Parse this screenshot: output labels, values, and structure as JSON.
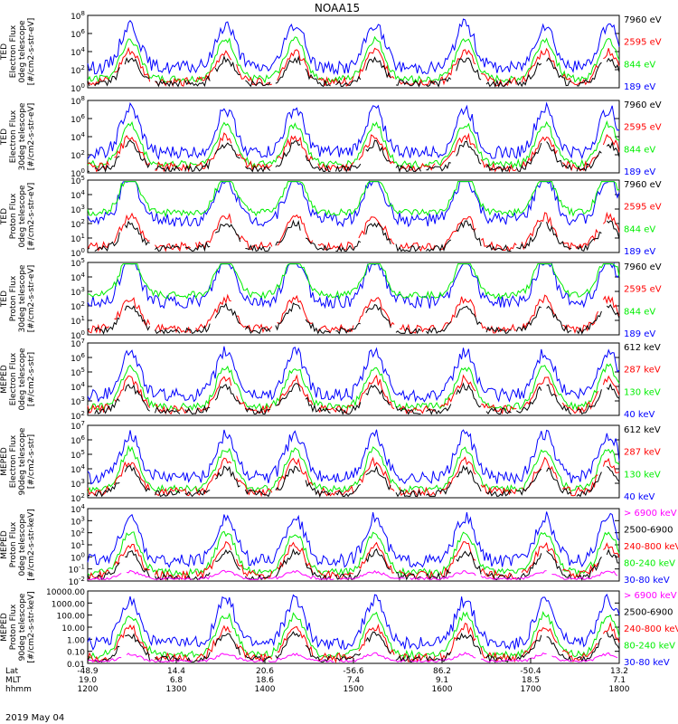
{
  "title": "NOAA15",
  "date_label": "2019 May 04",
  "xaxis": {
    "row_labels": [
      "Lat",
      "MLT",
      "hhmm"
    ],
    "lat": [
      "-48.9",
      "14.4",
      "20.6",
      "-56.6",
      "86.2",
      "-50.4",
      "13.2"
    ],
    "mlt": [
      "19.0",
      "6.8",
      "18.6",
      "7.4",
      "9.1",
      "18.5",
      "7.1"
    ],
    "hhmm": [
      "1200",
      "1300",
      "1400",
      "1500",
      "1600",
      "1700",
      "1800"
    ]
  },
  "colors": {
    "black": "#000000",
    "blue": "#0000ff",
    "green": "#00ee00",
    "red": "#ff0000",
    "magenta": "#ff00ff"
  },
  "chart_data": [
    {
      "type": "line",
      "ylabel": [
        "TED",
        "Electron Flux",
        "0deg telescope",
        "[#/cm2-s-str-eV]"
      ],
      "yticks": [
        "10^0",
        "10^2",
        "10^4",
        "10^6",
        "10^8"
      ],
      "ylog": true,
      "ylim": [
        1,
        100000000
      ],
      "series": [
        {
          "name": "7960 eV",
          "color": "#000000"
        },
        {
          "name": "2595 eV",
          "color": "#ff0000"
        },
        {
          "name": "844 eV",
          "color": "#00ee00"
        },
        {
          "name": "189 eV",
          "color": "#0000ff"
        }
      ]
    },
    {
      "type": "line",
      "ylabel": [
        "TED",
        "Electron Flux",
        "30deg telescope",
        "[#/cm2-s-str-eV]"
      ],
      "yticks": [
        "10^0",
        "10^2",
        "10^4",
        "10^6",
        "10^8"
      ],
      "ylog": true,
      "ylim": [
        1,
        100000000
      ],
      "series": [
        {
          "name": "7960 eV",
          "color": "#000000"
        },
        {
          "name": "2595 eV",
          "color": "#ff0000"
        },
        {
          "name": "844 eV",
          "color": "#00ee00"
        },
        {
          "name": "189 eV",
          "color": "#0000ff"
        }
      ]
    },
    {
      "type": "line",
      "ylabel": [
        "TED",
        "Proton Flux",
        "0deg telescope",
        "[#/cm2-s-str-eV]"
      ],
      "yticks": [
        "10^0",
        "10^1",
        "10^2",
        "10^3",
        "10^4",
        "10^5"
      ],
      "ylog": true,
      "ylim": [
        1,
        100000
      ],
      "series": [
        {
          "name": "7960 eV",
          "color": "#000000"
        },
        {
          "name": "2595 eV",
          "color": "#ff0000"
        },
        {
          "name": "844 eV",
          "color": "#00ee00"
        },
        {
          "name": "189 eV",
          "color": "#0000ff"
        }
      ]
    },
    {
      "type": "line",
      "ylabel": [
        "TED",
        "Proton Flux",
        "30deg telescope",
        "[#/cm2-s-str-eV]"
      ],
      "yticks": [
        "10^0",
        "10^1",
        "10^2",
        "10^3",
        "10^4",
        "10^5"
      ],
      "ylog": true,
      "ylim": [
        1,
        100000
      ],
      "series": [
        {
          "name": "7960 eV",
          "color": "#000000"
        },
        {
          "name": "2595 eV",
          "color": "#ff0000"
        },
        {
          "name": "844 eV",
          "color": "#00ee00"
        },
        {
          "name": "189 eV",
          "color": "#0000ff"
        }
      ]
    },
    {
      "type": "line",
      "ylabel": [
        "MEPED",
        "Electron Flux",
        "0deg telescope",
        "[#/cm2-s-str]"
      ],
      "yticks": [
        "10^2",
        "10^3",
        "10^4",
        "10^5",
        "10^6",
        "10^7"
      ],
      "ylog": true,
      "ylim": [
        100,
        10000000
      ],
      "series": [
        {
          "name": "612 keV",
          "color": "#000000"
        },
        {
          "name": "287 keV",
          "color": "#ff0000"
        },
        {
          "name": "130 keV",
          "color": "#00ee00"
        },
        {
          "name": "40 keV",
          "color": "#0000ff"
        }
      ]
    },
    {
      "type": "line",
      "ylabel": [
        "MEPED",
        "Electron Flux",
        "90deg telescope",
        "[#/cm2-s-str]"
      ],
      "yticks": [
        "10^2",
        "10^3",
        "10^4",
        "10^5",
        "10^6",
        "10^7"
      ],
      "ylog": true,
      "ylim": [
        100,
        10000000
      ],
      "series": [
        {
          "name": "612 keV",
          "color": "#000000"
        },
        {
          "name": "287 keV",
          "color": "#ff0000"
        },
        {
          "name": "130 keV",
          "color": "#00ee00"
        },
        {
          "name": "40 keV",
          "color": "#0000ff"
        }
      ]
    },
    {
      "type": "line",
      "ylabel": [
        "MEPED",
        "Proton Flux",
        "0deg telescope",
        "[#/cm2-s-str-keV]"
      ],
      "yticks": [
        "10^-2",
        "10^-1",
        "10^0",
        "10^1",
        "10^2",
        "10^3",
        "10^4"
      ],
      "ylog": true,
      "ylim": [
        0.01,
        10000
      ],
      "series": [
        {
          "name": "> 6900 keV",
          "color": "#ff00ff"
        },
        {
          "name": "2500-6900",
          "color": "#000000"
        },
        {
          "name": "240-800 keV",
          "color": "#ff0000"
        },
        {
          "name": "80-240 keV",
          "color": "#00ee00"
        },
        {
          "name": "30-80 keV",
          "color": "#0000ff"
        }
      ]
    },
    {
      "type": "line",
      "ylabel": [
        "MEPED",
        "Proton Flux",
        "90deg telescope",
        "[#/cm2-s-str-keV]"
      ],
      "yticks": [
        "0.01",
        "0.10",
        "1.00",
        "10.00",
        "100.00",
        "1000.00",
        "10000.00"
      ],
      "ylog": true,
      "ylim": [
        0.01,
        10000
      ],
      "series": [
        {
          "name": "> 6900 keV",
          "color": "#ff00ff"
        },
        {
          "name": "2500-6900",
          "color": "#000000"
        },
        {
          "name": "240-800 keV",
          "color": "#ff0000"
        },
        {
          "name": "80-240 keV",
          "color": "#00ee00"
        },
        {
          "name": "30-80 keV",
          "color": "#0000ff"
        }
      ]
    }
  ]
}
